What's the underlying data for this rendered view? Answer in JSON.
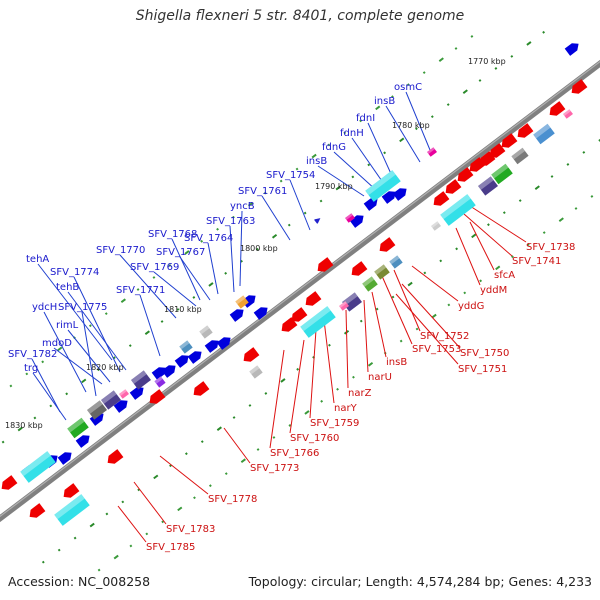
{
  "title": "Shigella flexneri 5 str. 8401, complete genome",
  "footer": {
    "accession": "Accession: NC_008258",
    "summary": "Topology: circular; Length: 4,574,284 bp; Genes: 4,233"
  },
  "scale_labels": [
    "1770 kbp",
    "1780 kbp",
    "1790 kbp",
    "1800 kbp",
    "1810 kbp",
    "1820 kbp",
    "1830 kbp"
  ],
  "upper_genes": [
    "osmC",
    "insB",
    "fdnI",
    "fdnH",
    "fdnG",
    "insB",
    "SFV_1754",
    "SFV_1761",
    "yncB",
    "SFV_1763",
    "SFV_1768",
    "SFV_1764",
    "SFV_1767",
    "SFV_1770",
    "SFV_1769",
    "tehA",
    "SFV_1774",
    "tehB",
    "SFV_1771",
    "ydcH",
    "SFV_1775",
    "rimL",
    "mdoD",
    "SFV_1782",
    "trg"
  ],
  "lower_genes": [
    "SFV_1738",
    "SFV_1741",
    "sfcA",
    "yddM",
    "yddG",
    "SFV_1752",
    "SFV_1753",
    "SFV_1750",
    "SFV_1751",
    "insB",
    "narU",
    "narZ",
    "narY",
    "SFV_1759",
    "SFV_1760",
    "SFV_1766",
    "SFV_1773",
    "SFV_1778",
    "SFV_1783",
    "SFV_1785"
  ],
  "colors": {
    "forward": "#0000dd",
    "reverse": "#ee0000",
    "cyan": "#33e0e8",
    "backbone": "#808080",
    "tick": "#228822",
    "upper_label": "#1a1acc",
    "lower_label": "#cc1111"
  }
}
